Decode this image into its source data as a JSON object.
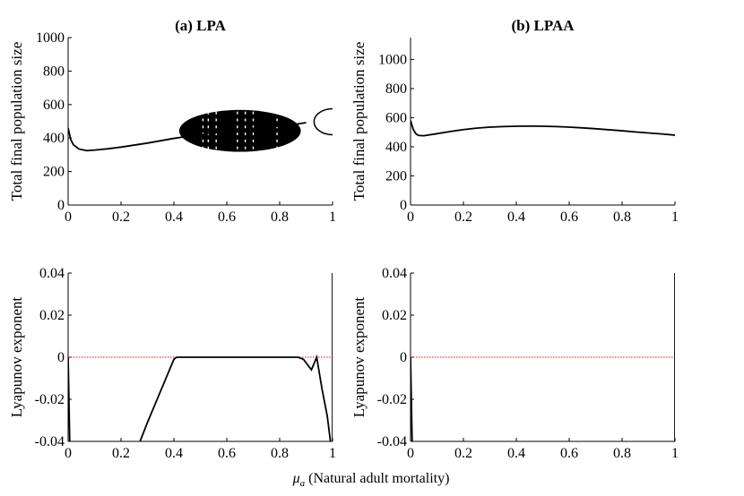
{
  "chart_data": [
    {
      "type": "line",
      "title": "(a) LPA",
      "ylabel": "Total final population size",
      "xlim": [
        0,
        1
      ],
      "ylim": [
        0,
        1000
      ],
      "xticks": [
        "0",
        "0.2",
        "0.4",
        "0.6",
        "0.8",
        "1"
      ],
      "yticks": [
        "0",
        "200",
        "400",
        "600",
        "800",
        "1000"
      ],
      "series": [
        {
          "x": [
            0.0,
            0.01,
            0.02,
            0.04,
            0.07,
            0.1,
            0.15,
            0.2,
            0.25,
            0.3,
            0.35,
            0.4,
            0.45,
            0.5,
            0.55,
            0.6,
            0.65,
            0.7,
            0.75,
            0.8,
            0.85,
            0.9
          ],
          "y": [
            460,
            390,
            360,
            335,
            325,
            328,
            336,
            346,
            358,
            370,
            384,
            398,
            410,
            420,
            430,
            440,
            450,
            458,
            465,
            472,
            480,
            492
          ]
        }
      ],
      "chaotic_band": {
        "x_range": [
          0.42,
          0.88
        ],
        "y_range": [
          318,
          568
        ]
      },
      "loop": {
        "x_range": [
          0.93,
          1.0
        ],
        "y_range": [
          420,
          575
        ]
      }
    },
    {
      "type": "line",
      "title": "(b) LPAA",
      "ylabel": "Total final population size",
      "xlim": [
        0,
        1
      ],
      "ylim": [
        0,
        1150
      ],
      "xticks": [
        "0",
        "0.2",
        "0.4",
        "0.6",
        "0.8",
        "1"
      ],
      "yticks": [
        "0",
        "200",
        "400",
        "600",
        "800",
        "1000"
      ],
      "series": [
        {
          "x": [
            0.0,
            0.01,
            0.02,
            0.03,
            0.05,
            0.1,
            0.15,
            0.2,
            0.25,
            0.3,
            0.35,
            0.4,
            0.45,
            0.5,
            0.55,
            0.6,
            0.65,
            0.7,
            0.75,
            0.8,
            0.85,
            0.9,
            0.95,
            1.0
          ],
          "y": [
            580,
            520,
            490,
            478,
            476,
            490,
            505,
            518,
            528,
            535,
            539,
            541,
            542,
            541,
            539,
            535,
            530,
            524,
            517,
            510,
            502,
            495,
            488,
            480
          ]
        }
      ]
    },
    {
      "type": "line",
      "ylabel": "Lyapunov exponent",
      "xlim": [
        0,
        1
      ],
      "ylim": [
        -0.04,
        0.04
      ],
      "xticks": [
        "0",
        "0.2",
        "0.4",
        "0.6",
        "0.8",
        "1"
      ],
      "yticks": [
        "-0.04",
        "-0.02",
        "0",
        "0.02",
        "0.04"
      ],
      "zero_line": true,
      "series": [
        {
          "x": [
            0.0,
            0.003,
            0.006
          ],
          "y": [
            0.0,
            -0.02,
            -0.04
          ]
        },
        {
          "x": [
            0.272,
            0.3,
            0.33,
            0.36,
            0.38,
            0.4,
            0.41,
            0.5,
            0.6,
            0.7,
            0.8,
            0.87,
            0.89,
            0.92,
            0.94,
            0.96,
            0.98,
            0.992
          ],
          "y": [
            -0.04,
            -0.031,
            -0.022,
            -0.013,
            -0.007,
            -0.001,
            0.0,
            0.0,
            0.0,
            0.0,
            0.0,
            0.0,
            -0.001,
            -0.006,
            0.0,
            -0.015,
            -0.028,
            -0.04
          ]
        },
        {
          "x": [
            1.0,
            1.0
          ],
          "y": [
            -0.04,
            0.04
          ]
        }
      ]
    },
    {
      "type": "line",
      "ylabel": "Lyapunov exponent",
      "xlim": [
        0,
        1
      ],
      "ylim": [
        -0.04,
        0.04
      ],
      "xticks": [
        "0",
        "0.2",
        "0.4",
        "0.6",
        "0.8",
        "1"
      ],
      "yticks": [
        "-0.04",
        "-0.02",
        "0",
        "0.02",
        "0.04"
      ],
      "zero_line": true,
      "series": [
        {
          "x": [
            0.0,
            0.003,
            0.006
          ],
          "y": [
            0.0,
            -0.02,
            -0.04
          ]
        },
        {
          "x": [
            1.0,
            1.0
          ],
          "y": [
            -0.04,
            0.04
          ]
        }
      ]
    }
  ],
  "xlabel": {
    "symbol": "μ",
    "subscript": "a",
    "text": " (Natural adult mortality)"
  },
  "colors": {
    "line": "#000000",
    "zero_line": "#ff0000"
  }
}
